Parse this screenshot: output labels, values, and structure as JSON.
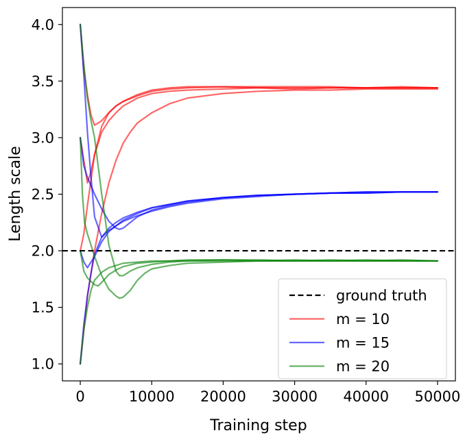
{
  "chart_data": {
    "type": "line",
    "xlabel": "Training step",
    "ylabel": "Length scale",
    "xlim": [
      -2500,
      52500
    ],
    "ylim": [
      0.85,
      4.15
    ],
    "xticks": [
      0,
      10000,
      20000,
      30000,
      40000,
      50000
    ],
    "xtick_labels": [
      "0",
      "10000",
      "20000",
      "30000",
      "40000",
      "50000"
    ],
    "yticks": [
      1.0,
      1.5,
      2.0,
      2.5,
      3.0,
      3.5,
      4.0
    ],
    "ytick_labels": [
      "1.0",
      "1.5",
      "2.0",
      "2.5",
      "3.0",
      "3.5",
      "4.0"
    ],
    "grid": false,
    "legend_position": "lower-right",
    "reference_line": {
      "name": "ground truth",
      "y": 2.0,
      "color": "#000000",
      "style": "dashed"
    },
    "series": [
      {
        "name": "m = 10",
        "color": "#ff0000",
        "runs": [
          {
            "x": [
              0,
              500,
              1000,
              1500,
              2000,
              3000,
              4000,
              5000,
              6000,
              8000,
              10000,
              12500,
              15000,
              20000,
              25000,
              30000,
              35000,
              40000,
              45000,
              50000
            ],
            "y": [
              4.0,
              3.6,
              3.38,
              3.2,
              3.11,
              3.15,
              3.22,
              3.28,
              3.32,
              3.37,
              3.41,
              3.43,
              3.44,
              3.45,
              3.44,
              3.44,
              3.44,
              3.44,
              3.44,
              3.44
            ]
          },
          {
            "x": [
              0,
              500,
              1000,
              1500,
              2000,
              3000,
              4000,
              5000,
              6000,
              8000,
              10000,
              12500,
              15000,
              20000,
              25000,
              30000,
              35000,
              40000,
              45000,
              50000
            ],
            "y": [
              3.0,
              2.8,
              2.6,
              2.7,
              2.85,
              3.05,
              3.15,
              3.22,
              3.28,
              3.35,
              3.39,
              3.41,
              3.42,
              3.43,
              3.44,
              3.43,
              3.44,
              3.44,
              3.44,
              3.44
            ]
          },
          {
            "x": [
              0,
              500,
              1000,
              2000,
              3000,
              4000,
              5000,
              6000,
              8000,
              10000,
              12500,
              15000,
              20000,
              25000,
              30000,
              35000,
              40000,
              45000,
              50000
            ],
            "y": [
              2.0,
              2.15,
              2.4,
              2.85,
              3.1,
              3.22,
              3.28,
              3.32,
              3.38,
              3.42,
              3.44,
              3.45,
              3.45,
              3.45,
              3.45,
              3.45,
              3.44,
              3.45,
              3.44
            ]
          },
          {
            "x": [
              0,
              500,
              1000,
              2000,
              3000,
              4000,
              5000,
              6000,
              7000,
              8000,
              10000,
              12500,
              15000,
              20000,
              25000,
              30000,
              35000,
              40000,
              45000,
              50000
            ],
            "y": [
              1.0,
              1.3,
              1.6,
              2.0,
              2.33,
              2.6,
              2.8,
              2.95,
              3.05,
              3.13,
              3.22,
              3.3,
              3.35,
              3.39,
              3.41,
              3.42,
              3.42,
              3.43,
              3.43,
              3.43
            ]
          }
        ]
      },
      {
        "name": "m = 15",
        "color": "#0000ff",
        "runs": [
          {
            "x": [
              0,
              500,
              1000,
              2000,
              3000,
              4000,
              5000,
              5500,
              6000,
              7000,
              8000,
              10000,
              12500,
              15000,
              20000,
              25000,
              30000,
              35000,
              40000,
              45000,
              50000
            ],
            "y": [
              3.0,
              2.75,
              2.65,
              2.5,
              2.37,
              2.26,
              2.2,
              2.19,
              2.2,
              2.25,
              2.3,
              2.36,
              2.4,
              2.43,
              2.47,
              2.49,
              2.5,
              2.51,
              2.51,
              2.52,
              2.52
            ]
          },
          {
            "x": [
              0,
              500,
              1000,
              2000,
              3000,
              4000,
              5000,
              6000,
              8000,
              10000,
              12500,
              15000,
              20000,
              25000,
              30000,
              35000,
              40000,
              45000,
              50000
            ],
            "y": [
              2.0,
              1.9,
              1.85,
              1.95,
              2.08,
              2.17,
              2.22,
              2.27,
              2.33,
              2.38,
              2.41,
              2.44,
              2.47,
              2.49,
              2.5,
              2.51,
              2.52,
              2.52,
              2.52
            ]
          },
          {
            "x": [
              0,
              500,
              1000,
              1500,
              2000,
              3000,
              4000,
              5000,
              6000,
              8000,
              10000,
              12500,
              15000,
              20000,
              25000,
              30000,
              35000,
              40000,
              45000,
              50000
            ],
            "y": [
              1.0,
              1.35,
              1.6,
              1.8,
              1.97,
              2.12,
              2.2,
              2.25,
              2.29,
              2.34,
              2.38,
              2.41,
              2.44,
              2.47,
              2.49,
              2.5,
              2.51,
              2.52,
              2.52,
              2.52
            ]
          },
          {
            "x": [
              0,
              500,
              1000,
              1500,
              2000,
              3000,
              4000,
              5000,
              6000,
              8000,
              10000,
              12500,
              15000,
              20000,
              25000,
              30000,
              35000,
              40000,
              45000,
              50000
            ],
            "y": [
              4.0,
              3.55,
              3.05,
              2.65,
              2.3,
              2.12,
              2.18,
              2.22,
              2.26,
              2.31,
              2.35,
              2.39,
              2.42,
              2.46,
              2.48,
              2.5,
              2.51,
              2.51,
              2.52,
              2.52
            ]
          }
        ]
      },
      {
        "name": "m = 20",
        "color": "#008000",
        "runs": [
          {
            "x": [
              0,
              500,
              1000,
              1500,
              2000,
              3000,
              4000,
              5000,
              5500,
              6000,
              7000,
              8000,
              10000,
              12500,
              15000,
              20000,
              25000,
              30000,
              35000,
              40000,
              45000,
              50000
            ],
            "y": [
              4.0,
              3.65,
              3.35,
              3.15,
              3.0,
              2.5,
              2.05,
              1.82,
              1.78,
              1.78,
              1.82,
              1.85,
              1.88,
              1.9,
              1.91,
              1.91,
              1.91,
              1.91,
              1.91,
              1.91,
              1.91,
              1.91
            ]
          },
          {
            "x": [
              0,
              300,
              600,
              1000,
              2000,
              3000,
              4000,
              5000,
              5500,
              6000,
              7000,
              8000,
              9000,
              10000,
              12500,
              15000,
              20000,
              25000,
              30000,
              35000,
              40000,
              45000,
              50000
            ],
            "y": [
              3.0,
              2.5,
              2.25,
              2.15,
              1.95,
              1.78,
              1.66,
              1.6,
              1.58,
              1.59,
              1.65,
              1.74,
              1.8,
              1.84,
              1.87,
              1.89,
              1.9,
              1.91,
              1.91,
              1.91,
              1.91,
              1.91,
              1.91
            ]
          },
          {
            "x": [
              0,
              500,
              1000,
              2000,
              2500,
              3000,
              4000,
              5000,
              6000,
              8000,
              10000,
              12500,
              15000,
              20000,
              25000,
              30000,
              35000,
              40000,
              45000,
              50000
            ],
            "y": [
              2.0,
              1.82,
              1.76,
              1.7,
              1.69,
              1.72,
              1.79,
              1.83,
              1.86,
              1.89,
              1.9,
              1.91,
              1.91,
              1.92,
              1.91,
              1.92,
              1.91,
              1.92,
              1.91,
              1.91
            ]
          },
          {
            "x": [
              0,
              500,
              1000,
              1500,
              2000,
              3000,
              4000,
              5000,
              6000,
              8000,
              10000,
              12500,
              15000,
              20000,
              25000,
              30000,
              35000,
              40000,
              45000,
              50000
            ],
            "y": [
              1.0,
              1.3,
              1.5,
              1.65,
              1.74,
              1.81,
              1.85,
              1.87,
              1.89,
              1.9,
              1.91,
              1.91,
              1.92,
              1.92,
              1.92,
              1.91,
              1.92,
              1.91,
              1.92,
              1.91
            ]
          }
        ]
      }
    ]
  }
}
